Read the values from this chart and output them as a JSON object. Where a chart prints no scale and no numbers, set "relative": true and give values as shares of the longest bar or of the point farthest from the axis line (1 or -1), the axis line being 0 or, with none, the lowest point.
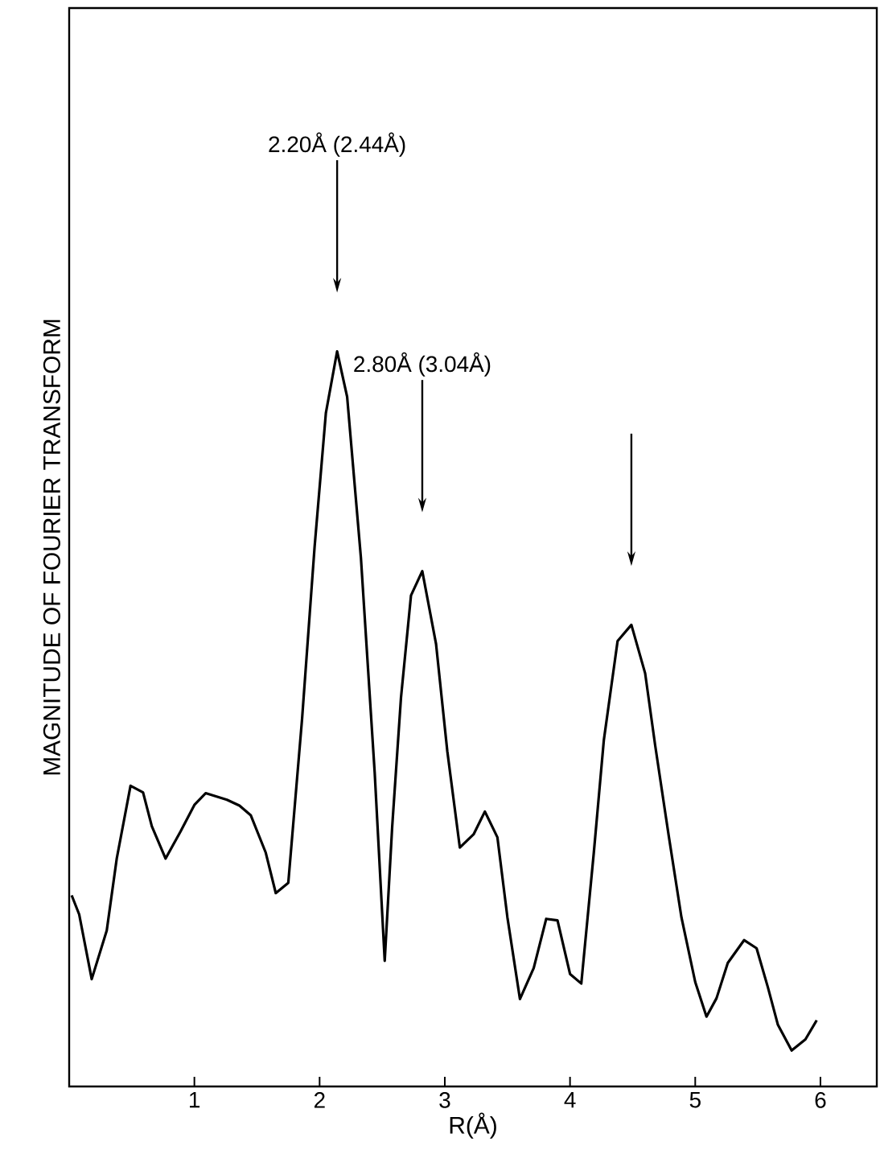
{
  "chart_data": {
    "type": "line",
    "xlabel": "R(Å)",
    "ylabel": "MAGNITUDE OF FOURIER TRANSFORM",
    "relative": true,
    "color": "#000000",
    "xlim": [
      0,
      6.45
    ],
    "xticks": [
      1,
      2,
      3,
      4,
      5,
      6
    ],
    "annotations": [
      "2.20Å (2.44Å)",
      "2.80Å (3.04Å)"
    ],
    "x": [
      0.02,
      0.08,
      0.18,
      0.3,
      0.38,
      0.49,
      0.59,
      0.66,
      0.77,
      0.89,
      1.0,
      1.09,
      1.26,
      1.36,
      1.45,
      1.57,
      1.65,
      1.75,
      1.86,
      1.96,
      2.05,
      2.14,
      2.22,
      2.33,
      2.44,
      2.52,
      2.58,
      2.65,
      2.73,
      2.82,
      2.93,
      3.02,
      3.12,
      3.23,
      3.32,
      3.42,
      3.5,
      3.6,
      3.71,
      3.81,
      3.9,
      4.0,
      4.09,
      4.19,
      4.27,
      4.38,
      4.49,
      4.6,
      4.68,
      4.79,
      4.89,
      5.0,
      5.09,
      5.17,
      5.26,
      5.39,
      5.49,
      5.58,
      5.66,
      5.77,
      5.88,
      5.97
    ],
    "values": [
      0.26,
      0.234,
      0.146,
      0.212,
      0.31,
      0.409,
      0.4,
      0.354,
      0.31,
      0.347,
      0.383,
      0.399,
      0.39,
      0.382,
      0.369,
      0.318,
      0.263,
      0.277,
      0.5,
      0.734,
      0.916,
      1.0,
      0.938,
      0.719,
      0.427,
      0.171,
      0.354,
      0.529,
      0.668,
      0.701,
      0.602,
      0.456,
      0.325,
      0.343,
      0.374,
      0.339,
      0.23,
      0.119,
      0.161,
      0.228,
      0.226,
      0.153,
      0.14,
      0.318,
      0.471,
      0.606,
      0.628,
      0.562,
      0.464,
      0.339,
      0.23,
      0.142,
      0.095,
      0.12,
      0.168,
      0.199,
      0.188,
      0.135,
      0.084,
      0.049,
      0.064,
      0.09
    ]
  }
}
